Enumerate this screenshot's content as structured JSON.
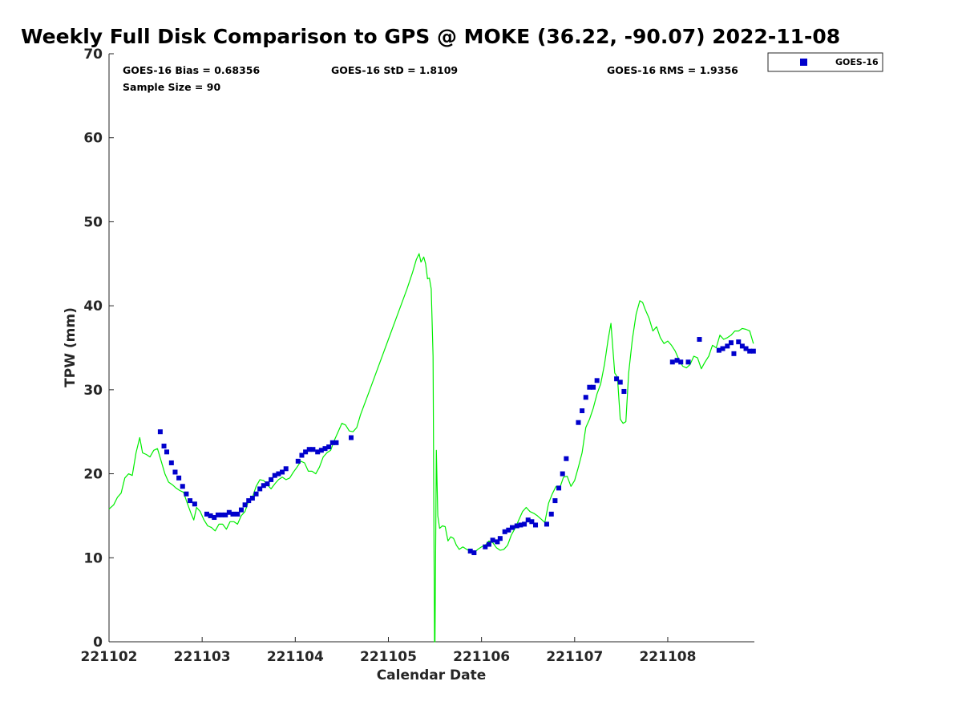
{
  "chart_data": {
    "type": "line",
    "title": "Weekly Full Disk Comparison to GPS @ MOKE (36.22, -90.07) 2022-11-08",
    "xlabel": "Calendar Date",
    "ylabel": "TPW (mm)",
    "xlim": [
      0,
      6.93
    ],
    "ylim": [
      0,
      70
    ],
    "x_ticks": [
      {
        "value": 0,
        "label": "221102"
      },
      {
        "value": 1,
        "label": "221103"
      },
      {
        "value": 2,
        "label": "221104"
      },
      {
        "value": 3,
        "label": "221105"
      },
      {
        "value": 4,
        "label": "221106"
      },
      {
        "value": 5,
        "label": "221107"
      },
      {
        "value": 6,
        "label": "221108"
      }
    ],
    "y_ticks": [
      0,
      10,
      20,
      30,
      40,
      50,
      60,
      70
    ],
    "grid": false,
    "legend_position": "top-right",
    "stats": {
      "bias": "GOES-16 Bias = 0.68356",
      "std": "GOES-16 StD = 1.8109",
      "rms": "GOES-16 RMS = 1.9356",
      "sample": "Sample Size = 90"
    },
    "series": [
      {
        "name": "GOES-16",
        "kind": "scatter",
        "color": "#0000cc",
        "points": [
          [
            0.55,
            25.0
          ],
          [
            0.59,
            23.3
          ],
          [
            0.62,
            22.6
          ],
          [
            0.67,
            21.3
          ],
          [
            0.71,
            20.2
          ],
          [
            0.75,
            19.5
          ],
          [
            0.79,
            18.5
          ],
          [
            0.83,
            17.6
          ],
          [
            0.87,
            16.8
          ],
          [
            0.92,
            16.4
          ],
          [
            1.05,
            15.2
          ],
          [
            1.09,
            15.0
          ],
          [
            1.13,
            14.8
          ],
          [
            1.17,
            15.1
          ],
          [
            1.21,
            15.1
          ],
          [
            1.25,
            15.1
          ],
          [
            1.29,
            15.4
          ],
          [
            1.33,
            15.2
          ],
          [
            1.38,
            15.2
          ],
          [
            1.42,
            15.7
          ],
          [
            1.46,
            16.3
          ],
          [
            1.5,
            16.8
          ],
          [
            1.54,
            17.1
          ],
          [
            1.58,
            17.6
          ],
          [
            1.62,
            18.2
          ],
          [
            1.66,
            18.6
          ],
          [
            1.7,
            18.8
          ],
          [
            1.74,
            19.3
          ],
          [
            1.78,
            19.8
          ],
          [
            1.82,
            20.0
          ],
          [
            1.86,
            20.2
          ],
          [
            1.9,
            20.6
          ],
          [
            2.03,
            21.5
          ],
          [
            2.07,
            22.2
          ],
          [
            2.11,
            22.6
          ],
          [
            2.15,
            22.9
          ],
          [
            2.19,
            22.9
          ],
          [
            2.24,
            22.6
          ],
          [
            2.28,
            22.8
          ],
          [
            2.32,
            23.0
          ],
          [
            2.36,
            23.2
          ],
          [
            2.4,
            23.7
          ],
          [
            2.44,
            23.7
          ],
          [
            2.6,
            24.3
          ],
          [
            3.88,
            10.8
          ],
          [
            3.92,
            10.6
          ],
          [
            4.04,
            11.3
          ],
          [
            4.08,
            11.6
          ],
          [
            4.12,
            12.1
          ],
          [
            4.17,
            11.9
          ],
          [
            4.2,
            12.3
          ],
          [
            4.25,
            13.1
          ],
          [
            4.29,
            13.3
          ],
          [
            4.33,
            13.6
          ],
          [
            4.38,
            13.8
          ],
          [
            4.42,
            13.9
          ],
          [
            4.46,
            14.0
          ],
          [
            4.5,
            14.5
          ],
          [
            4.54,
            14.3
          ],
          [
            4.58,
            13.9
          ],
          [
            4.7,
            14.0
          ],
          [
            4.75,
            15.2
          ],
          [
            4.79,
            16.8
          ],
          [
            4.83,
            18.3
          ],
          [
            4.87,
            20.0
          ],
          [
            4.91,
            21.8
          ],
          [
            5.04,
            26.1
          ],
          [
            5.08,
            27.5
          ],
          [
            5.12,
            29.1
          ],
          [
            5.16,
            30.3
          ],
          [
            5.2,
            30.3
          ],
          [
            5.24,
            31.1
          ],
          [
            5.45,
            31.3
          ],
          [
            5.49,
            30.9
          ],
          [
            5.53,
            29.8
          ],
          [
            6.05,
            33.3
          ],
          [
            6.1,
            33.5
          ],
          [
            6.14,
            33.3
          ],
          [
            6.22,
            33.3
          ],
          [
            6.34,
            36.0
          ],
          [
            6.55,
            34.7
          ],
          [
            6.59,
            34.9
          ],
          [
            6.64,
            35.2
          ],
          [
            6.68,
            35.6
          ],
          [
            6.71,
            34.3
          ],
          [
            6.76,
            35.7
          ],
          [
            6.8,
            35.2
          ],
          [
            6.84,
            34.9
          ],
          [
            6.88,
            34.6
          ],
          [
            6.92,
            34.6
          ]
        ]
      },
      {
        "kind": "line",
        "color": "#00ee00",
        "points": [
          [
            0.0,
            15.8
          ],
          [
            0.05,
            16.3
          ],
          [
            0.09,
            17.2
          ],
          [
            0.13,
            17.7
          ],
          [
            0.17,
            19.5
          ],
          [
            0.21,
            20.0
          ],
          [
            0.25,
            19.8
          ],
          [
            0.29,
            22.5
          ],
          [
            0.33,
            24.3
          ],
          [
            0.36,
            22.5
          ],
          [
            0.4,
            22.3
          ],
          [
            0.44,
            22.0
          ],
          [
            0.48,
            22.8
          ],
          [
            0.52,
            23.0
          ],
          [
            0.56,
            21.5
          ],
          [
            0.6,
            20.0
          ],
          [
            0.64,
            19.0
          ],
          [
            0.68,
            18.7
          ],
          [
            0.72,
            18.3
          ],
          [
            0.76,
            18.0
          ],
          [
            0.8,
            17.8
          ],
          [
            0.84,
            16.5
          ],
          [
            0.88,
            15.3
          ],
          [
            0.91,
            14.5
          ],
          [
            0.94,
            16.0
          ],
          [
            0.98,
            15.5
          ],
          [
            1.02,
            14.5
          ],
          [
            1.06,
            13.8
          ],
          [
            1.1,
            13.6
          ],
          [
            1.14,
            13.2
          ],
          [
            1.18,
            14.0
          ],
          [
            1.22,
            14.0
          ],
          [
            1.26,
            13.4
          ],
          [
            1.3,
            14.3
          ],
          [
            1.34,
            14.3
          ],
          [
            1.38,
            14.0
          ],
          [
            1.42,
            15.0
          ],
          [
            1.46,
            15.5
          ],
          [
            1.5,
            16.8
          ],
          [
            1.54,
            17.2
          ],
          [
            1.58,
            18.5
          ],
          [
            1.62,
            19.3
          ],
          [
            1.66,
            19.2
          ],
          [
            1.7,
            18.7
          ],
          [
            1.74,
            18.2
          ],
          [
            1.78,
            18.8
          ],
          [
            1.82,
            19.3
          ],
          [
            1.86,
            19.6
          ],
          [
            1.9,
            19.3
          ],
          [
            1.94,
            19.5
          ],
          [
            1.98,
            20.2
          ],
          [
            2.02,
            20.8
          ],
          [
            2.06,
            21.5
          ],
          [
            2.1,
            21.3
          ],
          [
            2.14,
            20.3
          ],
          [
            2.18,
            20.3
          ],
          [
            2.22,
            20.0
          ],
          [
            2.26,
            20.8
          ],
          [
            2.3,
            22.0
          ],
          [
            2.34,
            22.5
          ],
          [
            2.38,
            22.8
          ],
          [
            2.42,
            24.0
          ],
          [
            2.46,
            25.0
          ],
          [
            2.5,
            26.0
          ],
          [
            2.54,
            25.8
          ],
          [
            2.58,
            25.1
          ],
          [
            2.62,
            25.0
          ],
          [
            2.66,
            25.5
          ],
          [
            2.7,
            27.0
          ],
          [
            2.8,
            30.0
          ],
          [
            2.9,
            33.0
          ],
          [
            3.0,
            36.0
          ],
          [
            3.1,
            39.0
          ],
          [
            3.2,
            42.0
          ],
          [
            3.26,
            44.0
          ],
          [
            3.3,
            45.5
          ],
          [
            3.33,
            46.2
          ],
          [
            3.35,
            45.2
          ],
          [
            3.38,
            45.8
          ],
          [
            3.4,
            45.0
          ],
          [
            3.42,
            43.2
          ],
          [
            3.44,
            43.3
          ],
          [
            3.46,
            42.0
          ],
          [
            3.48,
            34.0
          ],
          [
            3.495,
            0.0
          ],
          [
            3.5,
            0.0
          ],
          [
            3.515,
            22.8
          ],
          [
            3.53,
            15.0
          ],
          [
            3.55,
            13.5
          ],
          [
            3.58,
            13.8
          ],
          [
            3.61,
            13.7
          ],
          [
            3.64,
            12.0
          ],
          [
            3.67,
            12.5
          ],
          [
            3.7,
            12.3
          ],
          [
            3.73,
            11.5
          ],
          [
            3.76,
            11.0
          ],
          [
            3.8,
            11.3
          ],
          [
            3.84,
            11.0
          ],
          [
            3.88,
            10.8
          ],
          [
            3.92,
            10.6
          ],
          [
            3.96,
            11.0
          ],
          [
            4.0,
            11.3
          ],
          [
            4.04,
            11.5
          ],
          [
            4.08,
            12.0
          ],
          [
            4.12,
            11.8
          ],
          [
            4.16,
            11.2
          ],
          [
            4.2,
            10.9
          ],
          [
            4.24,
            11.0
          ],
          [
            4.28,
            11.5
          ],
          [
            4.32,
            12.7
          ],
          [
            4.36,
            13.5
          ],
          [
            4.4,
            14.5
          ],
          [
            4.44,
            15.5
          ],
          [
            4.48,
            16.0
          ],
          [
            4.52,
            15.5
          ],
          [
            4.56,
            15.3
          ],
          [
            4.6,
            15.0
          ],
          [
            4.64,
            14.6
          ],
          [
            4.68,
            14.2
          ],
          [
            4.72,
            16.5
          ],
          [
            4.76,
            17.6
          ],
          [
            4.8,
            18.5
          ],
          [
            4.84,
            18.3
          ],
          [
            4.88,
            19.6
          ],
          [
            4.92,
            19.7
          ],
          [
            4.96,
            18.5
          ],
          [
            5.0,
            19.2
          ],
          [
            5.04,
            20.8
          ],
          [
            5.08,
            22.5
          ],
          [
            5.12,
            25.5
          ],
          [
            5.16,
            26.5
          ],
          [
            5.2,
            27.8
          ],
          [
            5.24,
            29.5
          ],
          [
            5.28,
            30.7
          ],
          [
            5.32,
            33.0
          ],
          [
            5.36,
            36.0
          ],
          [
            5.39,
            37.9
          ],
          [
            5.41,
            35.0
          ],
          [
            5.43,
            32.0
          ],
          [
            5.46,
            31.5
          ],
          [
            5.49,
            26.5
          ],
          [
            5.52,
            26.0
          ],
          [
            5.55,
            26.2
          ],
          [
            5.58,
            32.0
          ],
          [
            5.62,
            36.0
          ],
          [
            5.66,
            39.0
          ],
          [
            5.7,
            40.6
          ],
          [
            5.73,
            40.4
          ],
          [
            5.76,
            39.5
          ],
          [
            5.8,
            38.5
          ],
          [
            5.84,
            37.0
          ],
          [
            5.88,
            37.5
          ],
          [
            5.92,
            36.2
          ],
          [
            5.96,
            35.5
          ],
          [
            6.0,
            35.8
          ],
          [
            6.04,
            35.3
          ],
          [
            6.08,
            34.6
          ],
          [
            6.12,
            33.6
          ],
          [
            6.16,
            32.8
          ],
          [
            6.2,
            32.6
          ],
          [
            6.24,
            33.0
          ],
          [
            6.28,
            34.0
          ],
          [
            6.32,
            33.8
          ],
          [
            6.36,
            32.5
          ],
          [
            6.4,
            33.3
          ],
          [
            6.44,
            34.0
          ],
          [
            6.48,
            35.3
          ],
          [
            6.52,
            35.0
          ],
          [
            6.56,
            36.5
          ],
          [
            6.6,
            36.0
          ],
          [
            6.64,
            36.2
          ],
          [
            6.68,
            36.5
          ],
          [
            6.72,
            37.0
          ],
          [
            6.76,
            37.0
          ],
          [
            6.8,
            37.3
          ],
          [
            6.84,
            37.2
          ],
          [
            6.88,
            37.0
          ],
          [
            6.92,
            35.5
          ]
        ]
      }
    ]
  }
}
